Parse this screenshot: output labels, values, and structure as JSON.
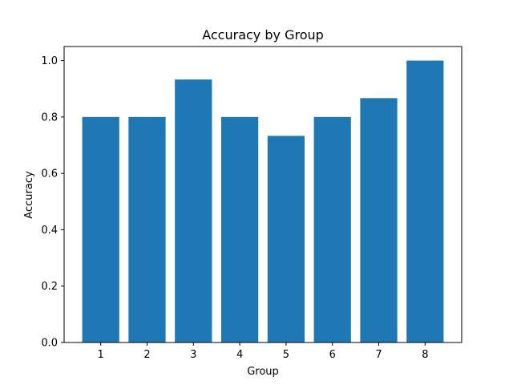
{
  "chart_data": {
    "type": "bar",
    "title": "Accuracy by Group",
    "xlabel": "Group",
    "ylabel": "Accuracy",
    "categories": [
      "1",
      "2",
      "3",
      "4",
      "5",
      "6",
      "7",
      "8"
    ],
    "values": [
      0.8,
      0.8,
      0.933,
      0.8,
      0.733,
      0.8,
      0.867,
      1.0
    ],
    "ylim": [
      0,
      1.05
    ],
    "yticks": [
      "0.0",
      "0.2",
      "0.4",
      "0.6",
      "0.8",
      "1.0"
    ],
    "grid": false,
    "bar_color": "#1f77b4"
  }
}
